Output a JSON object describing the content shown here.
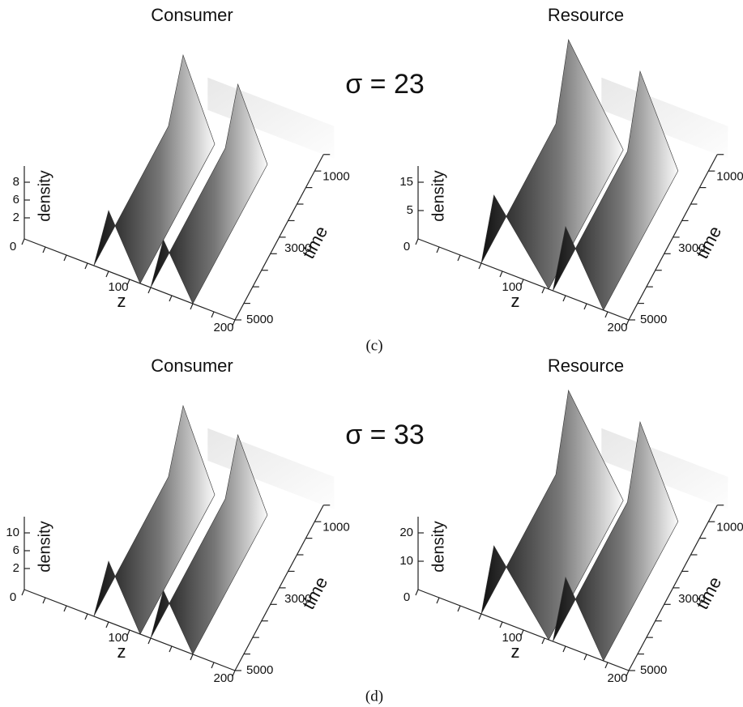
{
  "panels": [
    {
      "caption": "(c)",
      "sigma_label": "σ = 23",
      "plots": [
        {
          "title": "Consumer",
          "density_label": "density",
          "density_ticks": [
            8,
            6,
            2
          ],
          "z_label": "z",
          "z_ticks": [
            0,
            100,
            200
          ],
          "time_label": "time",
          "time_ticks": [
            1000,
            3000,
            5000
          ]
        },
        {
          "title": "Resource",
          "density_label": "density",
          "density_ticks": [
            15,
            5
          ],
          "z_label": "z",
          "z_ticks": [
            0,
            100,
            200
          ],
          "time_label": "time",
          "time_ticks": [
            1000,
            3000,
            5000
          ]
        }
      ]
    },
    {
      "caption": "(d)",
      "sigma_label": "σ = 33",
      "plots": [
        {
          "title": "Consumer",
          "density_label": "density",
          "density_ticks": [
            10,
            6,
            2
          ],
          "z_label": "z",
          "z_ticks": [
            0,
            100,
            200
          ],
          "time_label": "time",
          "time_ticks": [
            1000,
            3000,
            5000
          ]
        },
        {
          "title": "Resource",
          "density_label": "density",
          "density_ticks": [
            20,
            10
          ],
          "z_label": "z",
          "z_ticks": [
            0,
            100,
            200
          ],
          "time_label": "time",
          "time_ticks": [
            1000,
            3000,
            5000
          ]
        }
      ]
    }
  ]
}
